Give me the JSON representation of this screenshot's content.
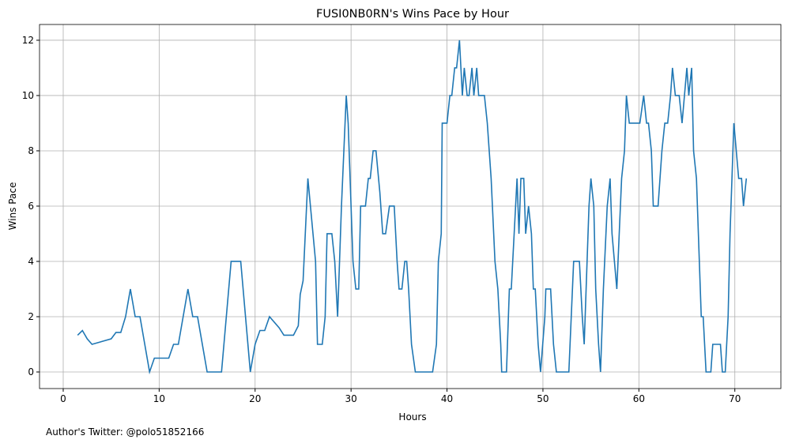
{
  "chart_data": {
    "type": "line",
    "title": "FUSI0NB0RN's Wins Pace by Hour",
    "x_label": "Hours",
    "y_label": "Wins Pace",
    "footnote": "Author's Twitter: @polo51852166",
    "grid": true,
    "x": [
      1.5,
      2,
      2.5,
      3,
      5,
      5.5,
      6,
      6.5,
      7,
      7.5,
      8,
      8.5,
      9,
      9.5,
      10,
      11,
      11.5,
      12,
      12.5,
      13,
      13.5,
      14,
      15,
      16.5,
      17.5,
      18.5,
      19.5,
      20,
      20.5,
      21,
      21.5,
      22.5,
      23,
      24,
      24.5,
      24.7,
      25,
      25.5,
      26.3,
      26.5,
      27,
      27.3,
      27.5,
      28,
      28.3,
      28.6,
      29,
      29.5,
      29.7,
      30.2,
      30.5,
      30.8,
      31,
      31.5,
      31.8,
      32,
      32.3,
      32.6,
      33,
      33.3,
      33.6,
      34,
      34.5,
      34.8,
      35,
      35.3,
      35.6,
      35.8,
      36,
      36.3,
      36.7,
      38.5,
      38.9,
      39.1,
      39.4,
      39.5,
      40.0,
      40.3,
      40.5,
      40.8,
      41.0,
      41.3,
      41.6,
      41.8,
      42.1,
      42.3,
      42.6,
      42.8,
      43.1,
      43.3,
      43.9,
      44.2,
      44.6,
      45.0,
      45.3,
      45.6,
      45.7,
      46.2,
      46.5,
      46.7,
      47.3,
      47.5,
      47.7,
      48.0,
      48.2,
      48.5,
      48.8,
      49.0,
      49.2,
      49.5,
      49.75,
      50.2,
      50.3,
      50.8,
      51.1,
      51.4,
      52.7,
      53.2,
      53.8,
      54.1,
      54.3,
      54.8,
      55.0,
      55.3,
      55.5,
      55.8,
      56.0,
      56.3,
      56.7,
      57.0,
      57.2,
      57.7,
      58.2,
      58.5,
      58.7,
      59.0,
      60.1,
      60.5,
      60.8,
      61.0,
      61.3,
      61.5,
      62.0,
      62.4,
      62.7,
      63.0,
      63.3,
      63.5,
      63.8,
      64.2,
      64.5,
      65.0,
      65.2,
      65.5,
      65.7,
      66.0,
      66.2,
      66.5,
      66.7,
      67.0,
      67.5,
      67.7,
      68.5,
      68.7,
      69.0,
      69.3,
      69.5,
      69.9,
      70.4,
      70.7,
      70.9,
      71.2
    ],
    "series": [
      {
        "name": "Wins Pace",
        "color": "#1f77b4",
        "values": [
          1.33,
          1.5,
          1.2,
          1.0,
          1.2,
          1.43,
          1.43,
          2,
          3,
          2,
          2,
          1,
          0,
          0.5,
          0.5,
          0.5,
          1,
          1,
          2,
          3,
          2,
          2,
          0,
          0,
          4,
          4,
          0,
          1,
          1.5,
          1.5,
          2,
          1.6,
          1.33,
          1.33,
          1.67,
          2.8,
          3.3,
          7,
          4,
          1,
          1,
          2,
          5,
          5,
          4,
          2,
          6,
          10,
          9,
          4,
          3,
          3,
          6,
          6,
          7,
          7,
          8,
          8,
          6.5,
          5,
          5,
          6,
          6,
          4,
          3,
          3,
          4,
          4,
          3,
          1,
          0,
          0,
          1,
          4,
          5,
          9,
          9,
          10,
          10,
          11,
          11,
          12,
          10,
          11,
          10,
          10,
          11,
          10,
          11,
          10,
          10,
          9,
          7,
          4,
          3,
          1,
          0,
          0,
          3,
          3,
          7,
          5,
          7,
          7,
          5,
          6,
          5,
          3,
          3,
          1,
          0,
          2,
          3,
          3,
          1,
          0,
          0,
          4,
          4,
          2,
          1,
          6,
          7,
          6,
          3,
          1,
          0,
          3,
          6,
          7,
          5,
          3,
          7,
          8,
          10,
          9,
          9,
          10,
          9,
          9,
          8,
          6,
          6,
          8,
          9,
          9,
          10,
          11,
          10,
          10,
          9,
          11,
          10,
          11,
          8,
          7,
          5,
          2,
          2,
          0,
          0,
          1,
          1,
          0,
          0,
          2,
          5,
          9,
          7,
          7,
          6,
          7
        ]
      }
    ],
    "xlim": [
      -2.47,
      74.8
    ],
    "xticks": [
      0,
      10,
      20,
      30,
      40,
      50,
      60,
      70
    ],
    "ylim": [
      -0.6,
      12.57
    ],
    "yticks": [
      0,
      2,
      4,
      6,
      8,
      10,
      12
    ]
  }
}
